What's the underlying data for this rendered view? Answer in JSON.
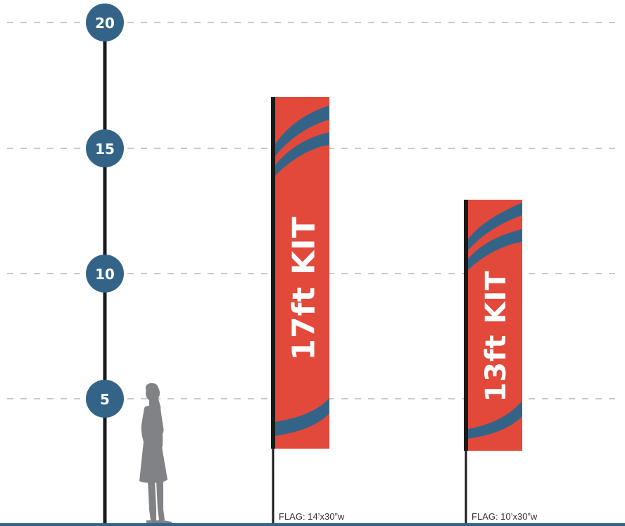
{
  "scale": {
    "marks": [
      {
        "label": "20"
      },
      {
        "label": "15"
      },
      {
        "label": "10"
      },
      {
        "label": "5"
      }
    ]
  },
  "flags": [
    {
      "title": "17ft KIT",
      "size_label": "FLAG: 14’x30”w"
    },
    {
      "title": "13ft KIT",
      "size_label": "FLAG: 10’x30”w"
    }
  ],
  "colors": {
    "badge": "#336487",
    "flag_red": "#e2493b",
    "flag_blue": "#336487",
    "pole": "#1a1a1a",
    "grid": "#c9c9c9",
    "ground": "#336487",
    "person": "#808285"
  },
  "icons": [
    "person-silhouette-icon"
  ]
}
